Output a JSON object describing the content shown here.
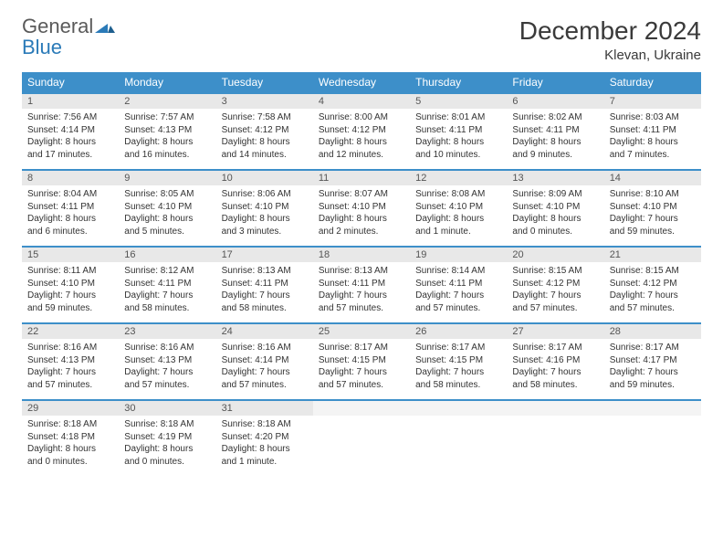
{
  "logo": {
    "text1": "General",
    "text2": "Blue"
  },
  "title": "December 2024",
  "location": "Klevan, Ukraine",
  "colors": {
    "header_bg": "#3d8fc9",
    "header_text": "#ffffff",
    "daynum_bg": "#e8e8e8",
    "border": "#3d8fc9",
    "logo_gray": "#5a5a5a",
    "logo_blue": "#2a7ab8"
  },
  "weekdays": [
    "Sunday",
    "Monday",
    "Tuesday",
    "Wednesday",
    "Thursday",
    "Friday",
    "Saturday"
  ],
  "days": [
    {
      "n": "1",
      "sunrise": "7:56 AM",
      "sunset": "4:14 PM",
      "daylight": "8 hours and 17 minutes."
    },
    {
      "n": "2",
      "sunrise": "7:57 AM",
      "sunset": "4:13 PM",
      "daylight": "8 hours and 16 minutes."
    },
    {
      "n": "3",
      "sunrise": "7:58 AM",
      "sunset": "4:12 PM",
      "daylight": "8 hours and 14 minutes."
    },
    {
      "n": "4",
      "sunrise": "8:00 AM",
      "sunset": "4:12 PM",
      "daylight": "8 hours and 12 minutes."
    },
    {
      "n": "5",
      "sunrise": "8:01 AM",
      "sunset": "4:11 PM",
      "daylight": "8 hours and 10 minutes."
    },
    {
      "n": "6",
      "sunrise": "8:02 AM",
      "sunset": "4:11 PM",
      "daylight": "8 hours and 9 minutes."
    },
    {
      "n": "7",
      "sunrise": "8:03 AM",
      "sunset": "4:11 PM",
      "daylight": "8 hours and 7 minutes."
    },
    {
      "n": "8",
      "sunrise": "8:04 AM",
      "sunset": "4:11 PM",
      "daylight": "8 hours and 6 minutes."
    },
    {
      "n": "9",
      "sunrise": "8:05 AM",
      "sunset": "4:10 PM",
      "daylight": "8 hours and 5 minutes."
    },
    {
      "n": "10",
      "sunrise": "8:06 AM",
      "sunset": "4:10 PM",
      "daylight": "8 hours and 3 minutes."
    },
    {
      "n": "11",
      "sunrise": "8:07 AM",
      "sunset": "4:10 PM",
      "daylight": "8 hours and 2 minutes."
    },
    {
      "n": "12",
      "sunrise": "8:08 AM",
      "sunset": "4:10 PM",
      "daylight": "8 hours and 1 minute."
    },
    {
      "n": "13",
      "sunrise": "8:09 AM",
      "sunset": "4:10 PM",
      "daylight": "8 hours and 0 minutes."
    },
    {
      "n": "14",
      "sunrise": "8:10 AM",
      "sunset": "4:10 PM",
      "daylight": "7 hours and 59 minutes."
    },
    {
      "n": "15",
      "sunrise": "8:11 AM",
      "sunset": "4:10 PM",
      "daylight": "7 hours and 59 minutes."
    },
    {
      "n": "16",
      "sunrise": "8:12 AM",
      "sunset": "4:11 PM",
      "daylight": "7 hours and 58 minutes."
    },
    {
      "n": "17",
      "sunrise": "8:13 AM",
      "sunset": "4:11 PM",
      "daylight": "7 hours and 58 minutes."
    },
    {
      "n": "18",
      "sunrise": "8:13 AM",
      "sunset": "4:11 PM",
      "daylight": "7 hours and 57 minutes."
    },
    {
      "n": "19",
      "sunrise": "8:14 AM",
      "sunset": "4:11 PM",
      "daylight": "7 hours and 57 minutes."
    },
    {
      "n": "20",
      "sunrise": "8:15 AM",
      "sunset": "4:12 PM",
      "daylight": "7 hours and 57 minutes."
    },
    {
      "n": "21",
      "sunrise": "8:15 AM",
      "sunset": "4:12 PM",
      "daylight": "7 hours and 57 minutes."
    },
    {
      "n": "22",
      "sunrise": "8:16 AM",
      "sunset": "4:13 PM",
      "daylight": "7 hours and 57 minutes."
    },
    {
      "n": "23",
      "sunrise": "8:16 AM",
      "sunset": "4:13 PM",
      "daylight": "7 hours and 57 minutes."
    },
    {
      "n": "24",
      "sunrise": "8:16 AM",
      "sunset": "4:14 PM",
      "daylight": "7 hours and 57 minutes."
    },
    {
      "n": "25",
      "sunrise": "8:17 AM",
      "sunset": "4:15 PM",
      "daylight": "7 hours and 57 minutes."
    },
    {
      "n": "26",
      "sunrise": "8:17 AM",
      "sunset": "4:15 PM",
      "daylight": "7 hours and 58 minutes."
    },
    {
      "n": "27",
      "sunrise": "8:17 AM",
      "sunset": "4:16 PM",
      "daylight": "7 hours and 58 minutes."
    },
    {
      "n": "28",
      "sunrise": "8:17 AM",
      "sunset": "4:17 PM",
      "daylight": "7 hours and 59 minutes."
    },
    {
      "n": "29",
      "sunrise": "8:18 AM",
      "sunset": "4:18 PM",
      "daylight": "8 hours and 0 minutes."
    },
    {
      "n": "30",
      "sunrise": "8:18 AM",
      "sunset": "4:19 PM",
      "daylight": "8 hours and 0 minutes."
    },
    {
      "n": "31",
      "sunrise": "8:18 AM",
      "sunset": "4:20 PM",
      "daylight": "8 hours and 1 minute."
    }
  ],
  "labels": {
    "sunrise": "Sunrise:",
    "sunset": "Sunset:",
    "daylight": "Daylight:"
  }
}
